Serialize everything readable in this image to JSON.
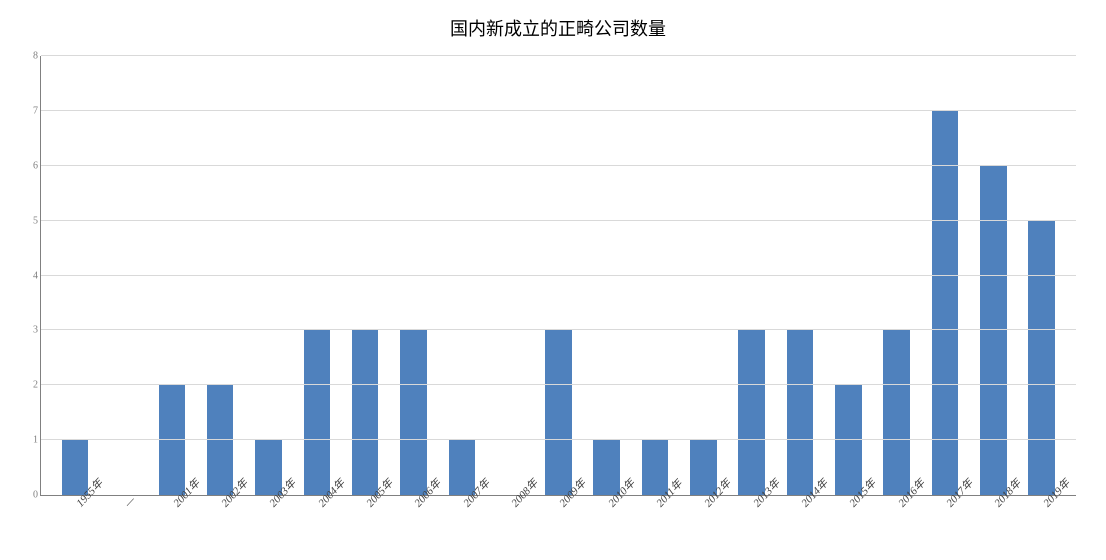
{
  "chart": {
    "type": "bar",
    "title": "国内新成立的正畸公司数量",
    "title_fontsize": 18,
    "title_color": "#000000",
    "background_color": "#ffffff",
    "plot_border_color": "#808080",
    "grid_color": "#d9d9d9",
    "bar_color": "#4f81bd",
    "bar_width_ratio": 0.55,
    "ylim": [
      0,
      8
    ],
    "ytick_step": 1,
    "y_ticks": [
      "0",
      "1",
      "2",
      "3",
      "4",
      "5",
      "6",
      "7",
      "8"
    ],
    "y_tick_fontsize": 10,
    "y_tick_color": "#808080",
    "x_label_fontsize": 11,
    "x_label_color": "#404040",
    "x_label_rotation": -47,
    "x_label_font_style": "italic",
    "categories": [
      "1955年",
      "—",
      "2001年",
      "2002年",
      "2003年",
      "2004年",
      "2005年",
      "2006年",
      "2007年",
      "2008年",
      "2009年",
      "2010年",
      "2011年",
      "2012年",
      "2013年",
      "2014年",
      "2015年",
      "2016年",
      "2017年",
      "2018年",
      "2019年"
    ],
    "values": [
      1,
      0,
      2,
      2,
      1,
      3,
      3,
      3,
      1,
      0,
      3,
      1,
      1,
      1,
      3,
      3,
      2,
      3,
      7,
      6,
      5
    ]
  }
}
